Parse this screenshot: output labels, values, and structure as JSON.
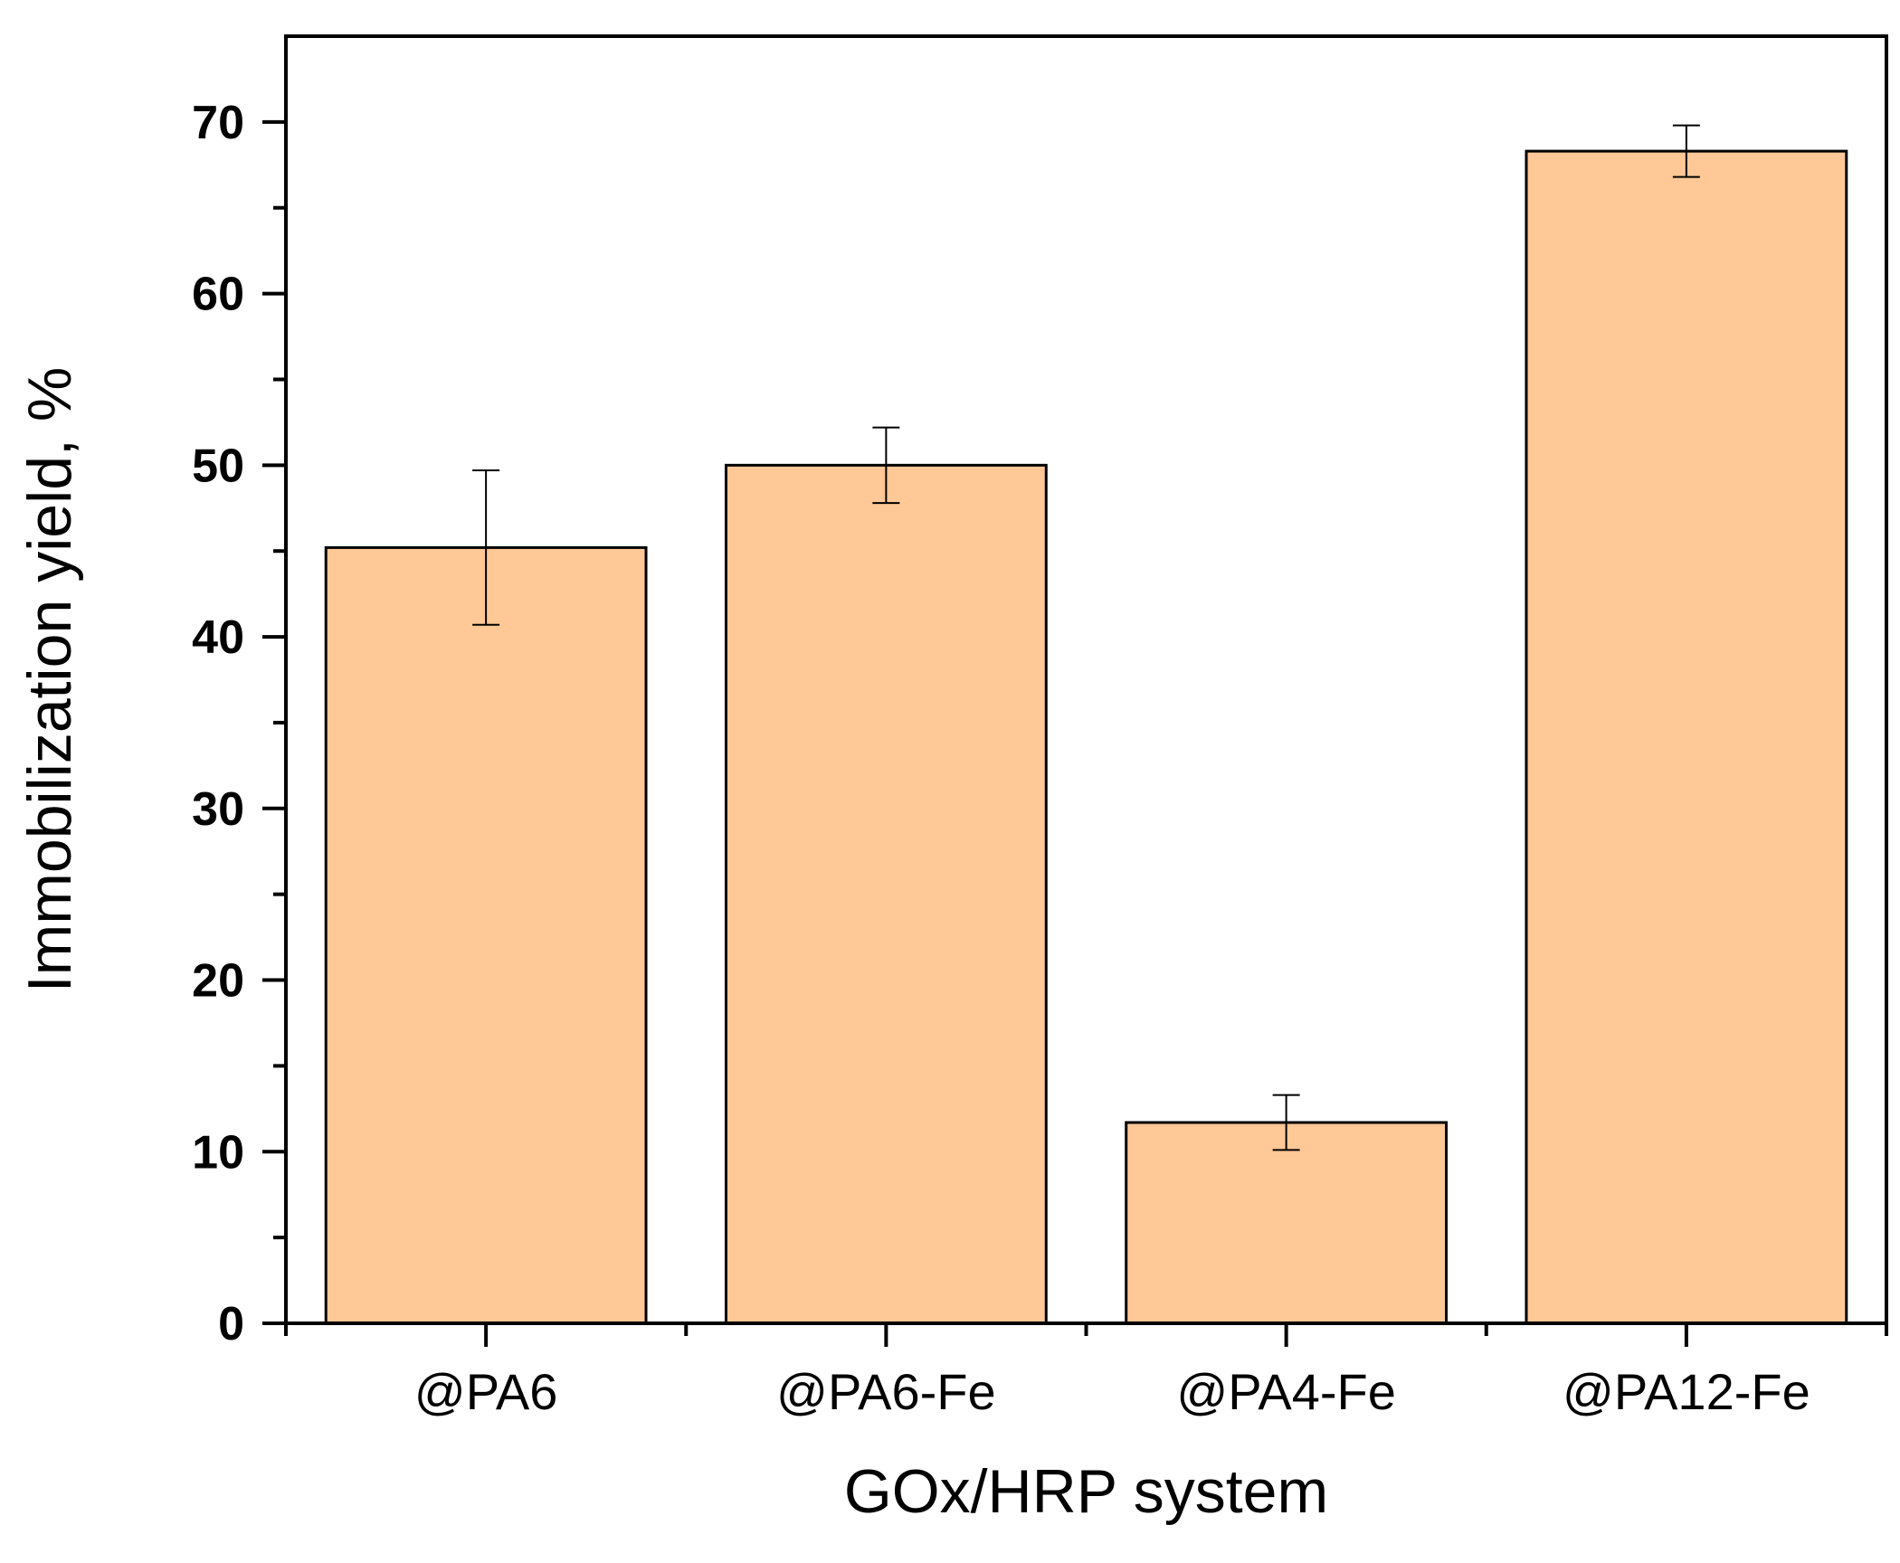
{
  "chart_data": {
    "type": "bar",
    "title": "",
    "xlabel": "GOx/HRP system",
    "ylabel": "Immobilization yield, %",
    "categories": [
      "@PA6",
      "@PA6-Fe",
      "@PA4-Fe",
      "@PA12-Fe"
    ],
    "values": [
      45.2,
      50.0,
      11.7,
      68.3
    ],
    "errors": [
      4.5,
      2.2,
      1.6,
      1.5
    ],
    "ylim": [
      0,
      75
    ],
    "yticks": [
      0,
      10,
      20,
      30,
      40,
      50,
      60,
      70
    ],
    "ytick_labels": [
      "0",
      "10",
      "20",
      "30",
      "40",
      "50",
      "60",
      "70"
    ],
    "grid": false,
    "legend": "none",
    "colors": {
      "bar_fill": "#FFC896",
      "bar_edge": "#000000",
      "axis": "#000000",
      "background": "#FFFFFF"
    }
  }
}
